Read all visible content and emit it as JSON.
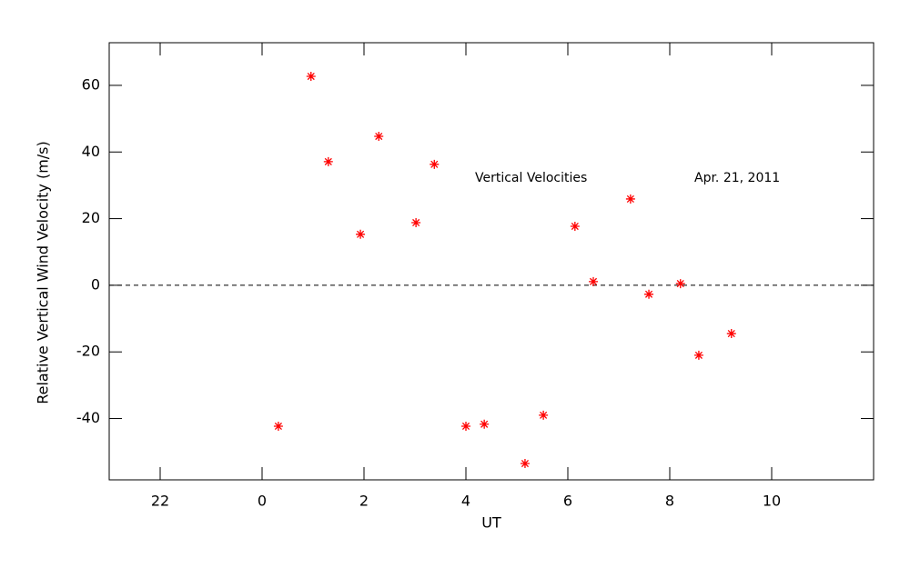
{
  "chart_data": {
    "type": "scatter",
    "xlabel": "UT",
    "ylabel": "Relative Vertical Wind Velocity (m/s)",
    "annotations": [
      "Vertical Velocities",
      "Apr. 21, 2011"
    ],
    "x": [
      0.32,
      0.96,
      1.3,
      1.93,
      2.29,
      3.02,
      3.38,
      4.0,
      4.36,
      5.16,
      5.52,
      6.14,
      6.5,
      7.23,
      7.59,
      8.21,
      8.57,
      9.21
    ],
    "values": [
      -42.3,
      62.7,
      37.1,
      15.3,
      44.7,
      18.8,
      36.3,
      -42.3,
      -41.7,
      -53.5,
      -39.0,
      17.7,
      1.1,
      25.9,
      -2.7,
      0.5,
      -21.0,
      -14.5
    ],
    "color": "#ff0000",
    "xlim": [
      -3,
      12
    ],
    "xticks": [
      {
        "value": -2,
        "label": "22"
      },
      0,
      2,
      4,
      6,
      8,
      10
    ],
    "ylim": [
      -58.4,
      72.8
    ],
    "yticks": [
      -40,
      -20,
      0,
      20,
      40,
      60
    ],
    "hline": 0
  }
}
